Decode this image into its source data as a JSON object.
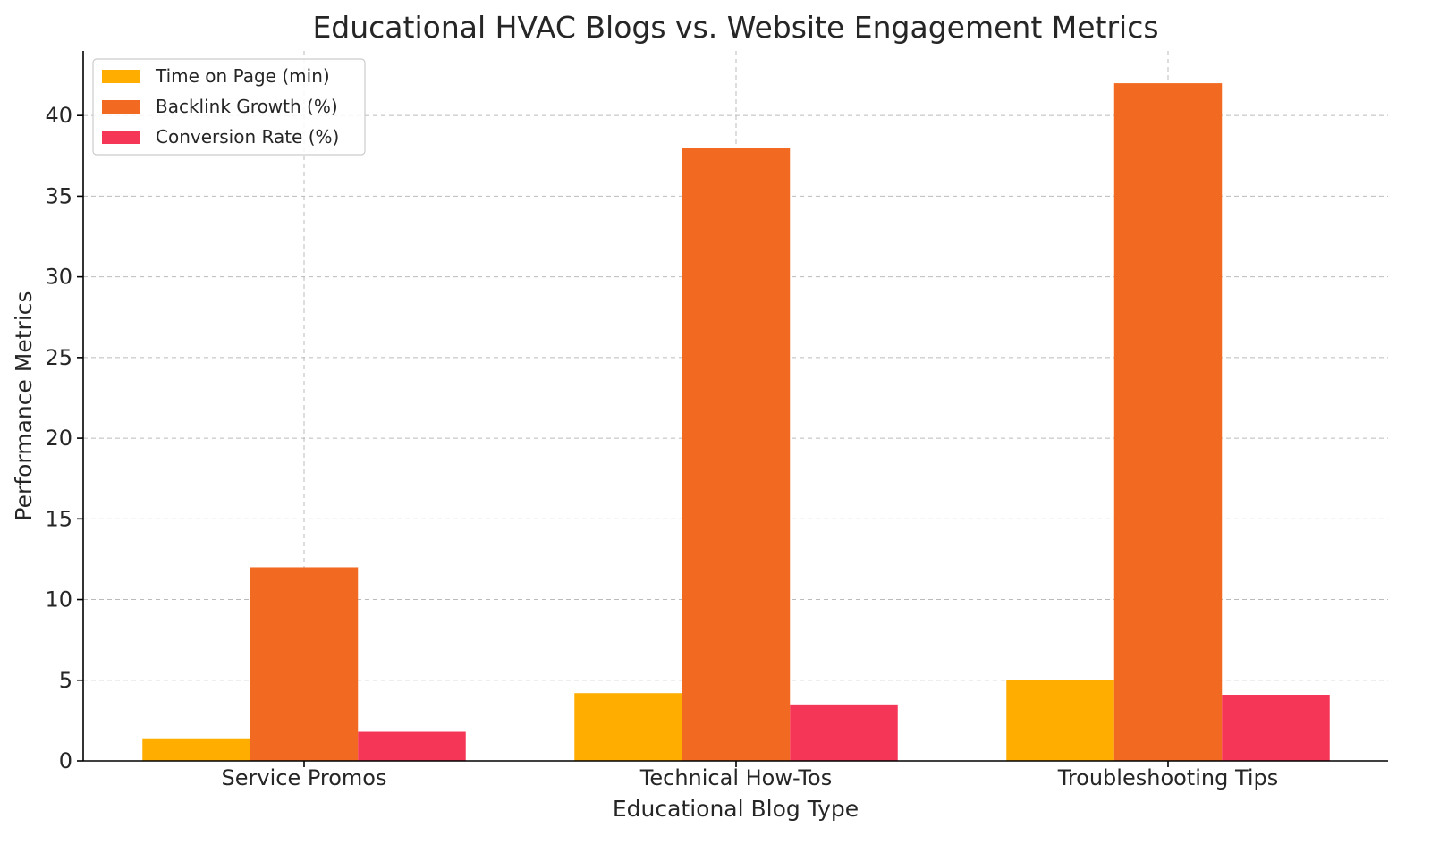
{
  "chart_data": {
    "type": "bar",
    "title": "Educational HVAC Blogs vs. Website Engagement Metrics",
    "xlabel": "Educational Blog Type",
    "ylabel": "Performance Metrics",
    "categories": [
      "Service Promos",
      "Technical How-Tos",
      "Troubleshooting Tips"
    ],
    "series": [
      {
        "name": "Time on Page (min)",
        "color": "#FFAE00",
        "values": [
          1.4,
          4.2,
          5.0
        ]
      },
      {
        "name": "Backlink Growth (%)",
        "color": "#F26A21",
        "values": [
          12,
          38,
          42
        ]
      },
      {
        "name": "Conversion Rate (%)",
        "color": "#F63657",
        "values": [
          1.8,
          3.5,
          4.1
        ]
      }
    ],
    "ylim": [
      0,
      44
    ],
    "yticks": [
      0,
      5,
      10,
      15,
      20,
      25,
      30,
      35,
      40
    ],
    "grid": true,
    "legend_position": "top-left"
  }
}
